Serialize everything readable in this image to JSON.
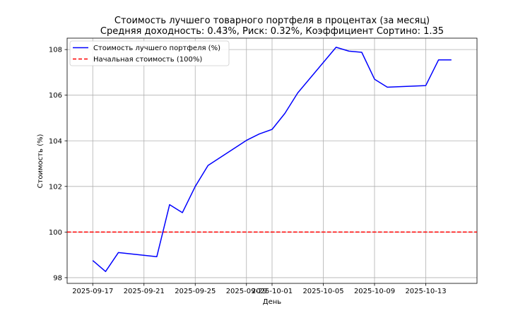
{
  "chart_data": {
    "type": "line",
    "title": "Стоимость лучшего товарного портфеля в процентах (за месяц)",
    "subtitle": "Средняя доходность: 0.43%, Риск: 0.32%, Коэффициент Сортино: 1.35",
    "xlabel": "День",
    "ylabel": "Стоимость (%)",
    "xlim": [
      "2025-09-15",
      "2025-10-17"
    ],
    "ylim": [
      97.75,
      108.5
    ],
    "x_ticks": [
      "2025-09-17",
      "2025-09-21",
      "2025-09-25",
      "2025-09-29",
      "2025-10-01",
      "2025-10-05",
      "2025-10-09",
      "2025-10-13"
    ],
    "y_ticks": [
      98,
      100,
      102,
      104,
      106,
      108
    ],
    "grid": true,
    "legend_position": "top-left",
    "series": [
      {
        "name": "Стоимость лучшего портфеля (%)",
        "color": "#0000ff",
        "style": "solid",
        "points": [
          {
            "x": "2025-09-17",
            "y": 98.75
          },
          {
            "x": "2025-09-18",
            "y": 98.27
          },
          {
            "x": "2025-09-19",
            "y": 99.1
          },
          {
            "x": "2025-09-22",
            "y": 98.92
          },
          {
            "x": "2025-09-23",
            "y": 101.2
          },
          {
            "x": "2025-09-24",
            "y": 100.85
          },
          {
            "x": "2025-09-25",
            "y": 102.0
          },
          {
            "x": "2025-09-26",
            "y": 102.92
          },
          {
            "x": "2025-09-29",
            "y": 104.02
          },
          {
            "x": "2025-09-30",
            "y": 104.3
          },
          {
            "x": "2025-10-01",
            "y": 104.5
          },
          {
            "x": "2025-10-02",
            "y": 105.2
          },
          {
            "x": "2025-10-03",
            "y": 106.1
          },
          {
            "x": "2025-10-06",
            "y": 108.1
          },
          {
            "x": "2025-10-07",
            "y": 107.93
          },
          {
            "x": "2025-10-08",
            "y": 107.88
          },
          {
            "x": "2025-10-09",
            "y": 106.7
          },
          {
            "x": "2025-10-10",
            "y": 106.35
          },
          {
            "x": "2025-10-13",
            "y": 106.42
          },
          {
            "x": "2025-10-14",
            "y": 107.55
          },
          {
            "x": "2025-10-15",
            "y": 107.55
          }
        ]
      },
      {
        "name": "Начальная стоимость (100%)",
        "color": "#ff0000",
        "style": "dashed",
        "hline": 100
      }
    ]
  }
}
